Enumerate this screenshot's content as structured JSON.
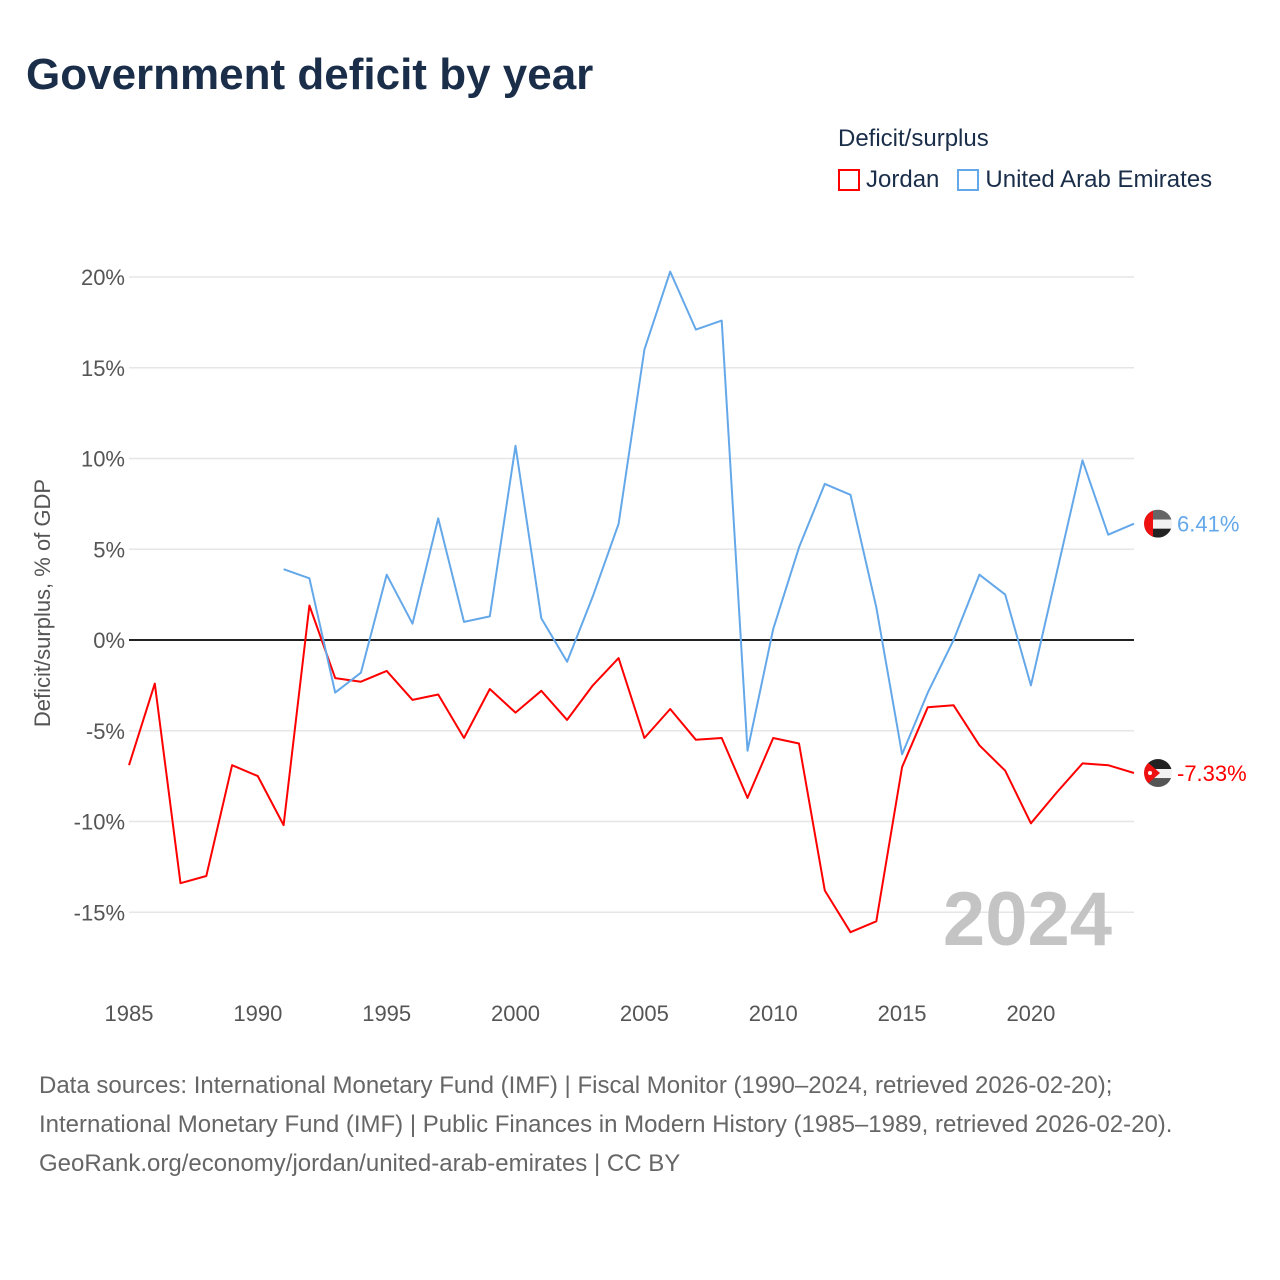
{
  "title": "Government deficit by year",
  "legend": {
    "title": "Deficit/surplus",
    "items": [
      {
        "label": "Jordan",
        "color": "#ff0000"
      },
      {
        "label": "United Arab Emirates",
        "color": "#64a8ea"
      }
    ]
  },
  "chart_data": {
    "type": "line",
    "title": "Government deficit by year",
    "xlabel": "",
    "ylabel": "Deficit/surplus, % of GDP",
    "xlim": [
      1985,
      2024
    ],
    "ylim": [
      -18,
      21
    ],
    "x_ticks": [
      "1985",
      "1990",
      "1995",
      "2000",
      "2005",
      "2010",
      "2015",
      "2020"
    ],
    "y_ticks": [
      {
        "v": 20,
        "label": "20%"
      },
      {
        "v": 15,
        "label": "15%"
      },
      {
        "v": 10,
        "label": "10%"
      },
      {
        "v": 5,
        "label": "5%"
      },
      {
        "v": 0,
        "label": "0%"
      },
      {
        "v": -5,
        "label": "-5%"
      },
      {
        "v": -10,
        "label": "-10%"
      },
      {
        "v": -15,
        "label": "-15%"
      }
    ],
    "year_watermark": "2024",
    "series": [
      {
        "name": "Jordan",
        "color": "#ff0000",
        "end_label": "-7.33%",
        "start": 1985,
        "values": [
          -6.9,
          -2.4,
          -13.4,
          -13.0,
          -6.9,
          -7.5,
          -10.2,
          1.9,
          -2.1,
          -2.3,
          -1.7,
          -3.3,
          -3.0,
          -5.4,
          -2.7,
          -4.0,
          -2.8,
          -4.4,
          -2.5,
          -1.0,
          -5.4,
          -3.8,
          -5.5,
          -5.4,
          -8.7,
          -5.4,
          -5.7,
          -13.8,
          -16.1,
          -15.5,
          -7.0,
          -3.7,
          -3.6,
          -5.8,
          -7.2,
          -10.1,
          -8.4,
          -6.8,
          -6.9,
          -7.33
        ]
      },
      {
        "name": "United Arab Emirates",
        "color": "#64a8ea",
        "end_label": "6.41%",
        "start": 1991,
        "values": [
          3.9,
          3.4,
          -2.9,
          -1.8,
          3.6,
          0.9,
          6.7,
          1.0,
          1.3,
          10.7,
          1.2,
          -1.2,
          2.4,
          6.4,
          16.0,
          20.3,
          17.1,
          17.6,
          -6.1,
          0.6,
          5.1,
          8.6,
          8.0,
          1.8,
          -6.3,
          -2.9,
          0.0,
          3.6,
          2.5,
          -2.5,
          3.7,
          9.9,
          5.8,
          6.41
        ]
      }
    ]
  },
  "footer": {
    "sources": "Data sources: International Monetary Fund (IMF) | Fiscal Monitor (1990–2024, retrieved 2026-02-20); International Monetary Fund (IMF) | Public Finances in Modern History (1985–1989, retrieved 2026-02-20).",
    "link": "GeoRank.org/economy/jordan/united-arab-emirates | CC BY"
  }
}
